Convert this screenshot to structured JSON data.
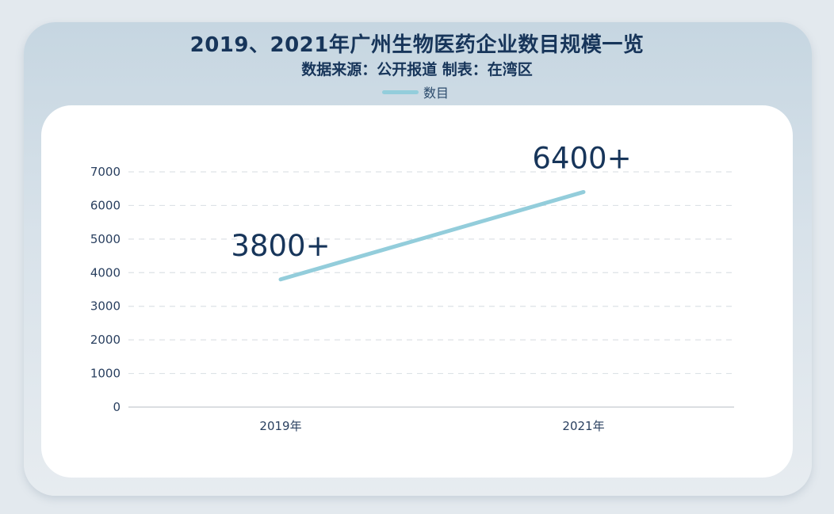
{
  "title": "2019、2021年广州生物医药企业数目规模一览",
  "subtitle": "数据来源：公开报道 制表：在湾区",
  "chart_data": {
    "type": "line",
    "categories": [
      "2019年",
      "2021年"
    ],
    "series": [
      {
        "name": "数目",
        "values": [
          3800,
          6400
        ],
        "color": "#93cddb"
      }
    ],
    "data_labels": [
      "3800+",
      "6400+"
    ],
    "ylim": [
      0,
      7000
    ],
    "yticks": [
      0,
      1000,
      2000,
      3000,
      4000,
      5000,
      6000,
      7000
    ],
    "grid": true,
    "legend_position": "top-center",
    "xlabel": "",
    "ylabel": ""
  }
}
